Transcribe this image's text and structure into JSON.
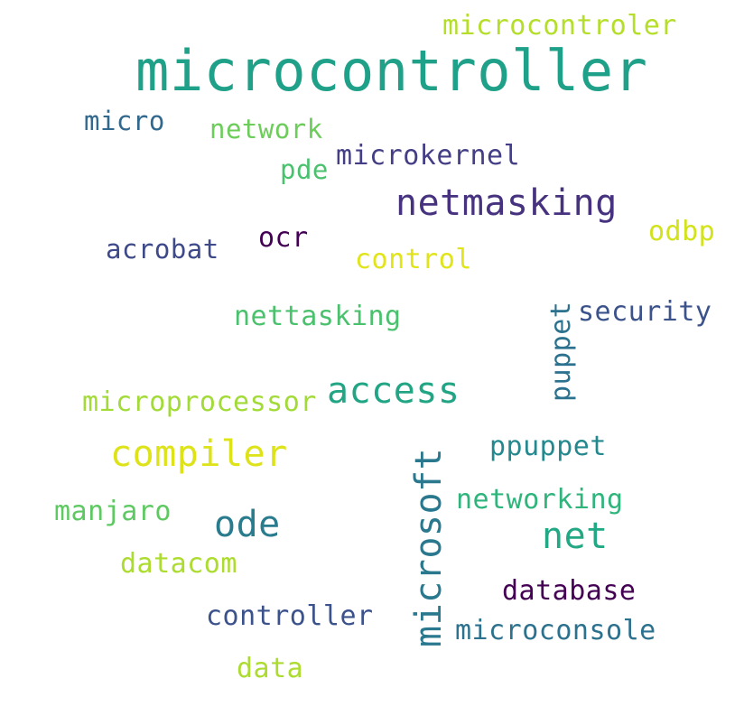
{
  "words": [
    {
      "text": "microcontroller",
      "color": "#1fa088"
    },
    {
      "text": "microcontroler",
      "color": "#b5de2b"
    },
    {
      "text": "micro",
      "color": "#31688e"
    },
    {
      "text": "network",
      "color": "#6ccd5a"
    },
    {
      "text": "pde",
      "color": "#4ac16d"
    },
    {
      "text": "microkernel",
      "color": "#433e85"
    },
    {
      "text": "netmasking",
      "color": "#46327e"
    },
    {
      "text": "odbp",
      "color": "#d2e21b"
    },
    {
      "text": "acrobat",
      "color": "#3e4989"
    },
    {
      "text": "ocr",
      "color": "#440154"
    },
    {
      "text": "control",
      "color": "#e0e418"
    },
    {
      "text": "nettasking",
      "color": "#4ac16d"
    },
    {
      "text": "security",
      "color": "#3b528b"
    },
    {
      "text": "puppet",
      "color": "#2c728e"
    },
    {
      "text": "access",
      "color": "#21a585"
    },
    {
      "text": "microprocessor",
      "color": "#a2da37"
    },
    {
      "text": "compiler",
      "color": "#dde318"
    },
    {
      "text": "ppuppet",
      "color": "#23898e"
    },
    {
      "text": "microsoft",
      "color": "#2a788e"
    },
    {
      "text": "networking",
      "color": "#2fb47c"
    },
    {
      "text": "manjaro",
      "color": "#5ec962"
    },
    {
      "text": "ode",
      "color": "#297b8e"
    },
    {
      "text": "net",
      "color": "#22a884"
    },
    {
      "text": "datacom",
      "color": "#addc30"
    },
    {
      "text": "database",
      "color": "#440154"
    },
    {
      "text": "controller",
      "color": "#3b528b"
    },
    {
      "text": "microconsole",
      "color": "#2c728e"
    },
    {
      "text": "data",
      "color": "#addc30"
    }
  ]
}
